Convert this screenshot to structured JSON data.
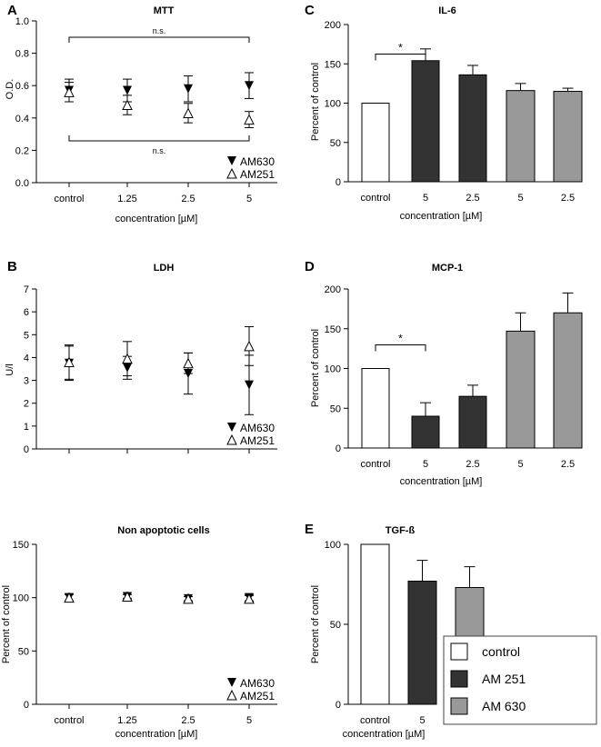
{
  "legend": {
    "entries": [
      {
        "label": "control",
        "color": "#ffffff"
      },
      {
        "label": "AM 251",
        "color": "#333333"
      },
      {
        "label": "AM 630",
        "color": "#999999"
      }
    ]
  },
  "chart_data": [
    {
      "id": "A",
      "type": "scatter",
      "panel_label": "A",
      "title": "MTT",
      "xlabel": "concentration [µM]",
      "ylabel": "O.D.",
      "categories": [
        "control",
        "1.25",
        "2.5",
        "5"
      ],
      "ylim": [
        0,
        1.0
      ],
      "yticks": [
        "0.0",
        "0.2",
        "0.4",
        "0.6",
        "0.8",
        "1.0"
      ],
      "ytick_values": [
        0,
        0.2,
        0.4,
        0.6,
        0.8,
        1.0
      ],
      "series": [
        {
          "name": "AM630",
          "marker": "down",
          "values": [
            0.57,
            0.57,
            0.58,
            0.6
          ],
          "err": [
            0.07,
            0.07,
            0.08,
            0.08
          ]
        },
        {
          "name": "AM251",
          "marker": "up",
          "values": [
            0.56,
            0.48,
            0.43,
            0.39
          ],
          "err": [
            0.06,
            0.06,
            0.06,
            0.05
          ]
        }
      ],
      "annotations": [
        {
          "text": "n.s.",
          "position": "top"
        },
        {
          "text": "n.s.",
          "position": "bottom"
        }
      ],
      "legend_position": "bottom-right"
    },
    {
      "id": "B",
      "type": "scatter",
      "panel_label": "B",
      "title": "LDH",
      "xlabel": "",
      "ylabel": "U/l",
      "categories": [
        "",
        "",
        "",
        ""
      ],
      "ylim": [
        0,
        7
      ],
      "yticks": [
        "0",
        "1",
        "2",
        "3",
        "4",
        "5",
        "6",
        "7"
      ],
      "ytick_values": [
        0,
        1,
        2,
        3,
        4,
        5,
        6,
        7
      ],
      "series": [
        {
          "name": "AM630",
          "marker": "down",
          "values": [
            3.75,
            3.55,
            3.3,
            2.8
          ],
          "err": [
            0.75,
            0.5,
            0.9,
            1.3
          ]
        },
        {
          "name": "AM251",
          "marker": "up",
          "values": [
            3.8,
            3.95,
            3.75,
            4.5
          ],
          "err": [
            0.75,
            0.75,
            0.45,
            0.85
          ]
        }
      ],
      "annotations": [],
      "legend_position": "bottom-right"
    },
    {
      "id": "NA",
      "type": "scatter",
      "panel_label": "",
      "title": "Non apoptotic cells",
      "xlabel": "concentration [µM]",
      "ylabel": "Percent of control",
      "categories": [
        "control",
        "1.25",
        "2.5",
        "5"
      ],
      "ylim": [
        0,
        150
      ],
      "yticks": [
        "0",
        "50",
        "100",
        "150"
      ],
      "ytick_values": [
        0,
        50,
        100,
        150
      ],
      "series": [
        {
          "name": "AM630",
          "marker": "down",
          "values": [
            100,
            101,
            99,
            100
          ],
          "err": [
            3,
            2,
            2,
            3
          ]
        },
        {
          "name": "AM251",
          "marker": "up",
          "values": [
            100,
            101,
            99,
            99
          ],
          "err": [
            3,
            2,
            2,
            3
          ]
        }
      ],
      "annotations": [],
      "legend_position": "bottom-right"
    },
    {
      "id": "C",
      "type": "bar",
      "panel_label": "C",
      "title": "IL-6",
      "xlabel": "concentration [µM]",
      "ylabel": "Percent of control",
      "categories": [
        "control",
        "5",
        "2.5",
        "5",
        "2.5"
      ],
      "values": [
        100,
        154,
        136,
        116,
        115
      ],
      "err": [
        0,
        15,
        12,
        9,
        4
      ],
      "bar_colors": [
        "#ffffff",
        "#333333",
        "#333333",
        "#999999",
        "#999999"
      ],
      "ylim": [
        0,
        200
      ],
      "yticks": [
        "0",
        "50",
        "100",
        "150",
        "200"
      ],
      "ytick_values": [
        0,
        50,
        100,
        150,
        200
      ],
      "significance": {
        "text": "*",
        "from": 0,
        "to": 1
      }
    },
    {
      "id": "D",
      "type": "bar",
      "panel_label": "D",
      "title": "MCP-1",
      "xlabel": "concentration [µM]",
      "ylabel": "Percent of control",
      "categories": [
        "control",
        "5",
        "2.5",
        "5",
        "2.5"
      ],
      "values": [
        100,
        40,
        65,
        147,
        170
      ],
      "err": [
        0,
        17,
        14,
        23,
        25
      ],
      "bar_colors": [
        "#ffffff",
        "#333333",
        "#333333",
        "#999999",
        "#999999"
      ],
      "ylim": [
        0,
        200
      ],
      "yticks": [
        "0",
        "50",
        "100",
        "150",
        "200"
      ],
      "ytick_values": [
        0,
        50,
        100,
        150,
        200
      ],
      "significance": {
        "text": "*",
        "from": 0,
        "to": 1
      }
    },
    {
      "id": "E",
      "type": "bar",
      "panel_label": "E",
      "title": "TGF-ß",
      "xlabel": "concentration [µM]",
      "ylabel": "Percent of control",
      "categories": [
        "control",
        "5",
        "5"
      ],
      "values": [
        100,
        77,
        73
      ],
      "err": [
        0,
        13,
        13
      ],
      "bar_colors": [
        "#ffffff",
        "#333333",
        "#999999"
      ],
      "ylim": [
        0,
        100
      ],
      "yticks": [
        "0",
        "50",
        "100"
      ],
      "ytick_values": [
        0,
        50,
        100
      ],
      "significance": null
    }
  ]
}
